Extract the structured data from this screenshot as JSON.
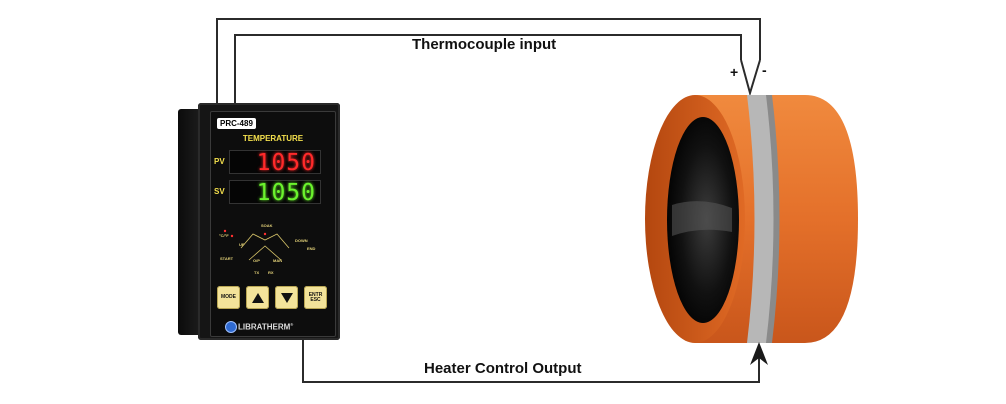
{
  "labels": {
    "thermocouple": "Thermocouple input",
    "heater": "Heater Control Output",
    "plus": "+",
    "minus": "-"
  },
  "controller": {
    "model": "PRC-489",
    "heading": "TEMPERATURE",
    "pv_label": "PV",
    "sv_label": "SV",
    "pv_value": "1050",
    "sv_value": "1050",
    "indicators": {
      "cf": "°C/°F",
      "soak": "SOAK",
      "up": "UP",
      "down": "DOWN",
      "start": "START",
      "op": "O/P",
      "man": "MAN",
      "end": "END",
      "tx": "TX",
      "rx": "RX"
    },
    "buttons": {
      "mode": "MODE",
      "enter": "ENTR",
      "esc": "ESC"
    },
    "brand": "LIBRATHERM",
    "brand_mark": "®"
  },
  "colors": {
    "pv_digits": "#ff2a2a",
    "sv_digits": "#6bf22d",
    "panel_text": "#f4e04d",
    "button": "#f3e39a",
    "heater_band": "#e4702a",
    "thermocouple_strip": "#b7b7b7",
    "wire": "#2b2b2b"
  },
  "icons": {
    "up_button": "triangle-up-icon",
    "down_button": "triangle-down-icon",
    "logo": "librathem-logo-icon",
    "arrow": "arrowhead-up-icon"
  }
}
